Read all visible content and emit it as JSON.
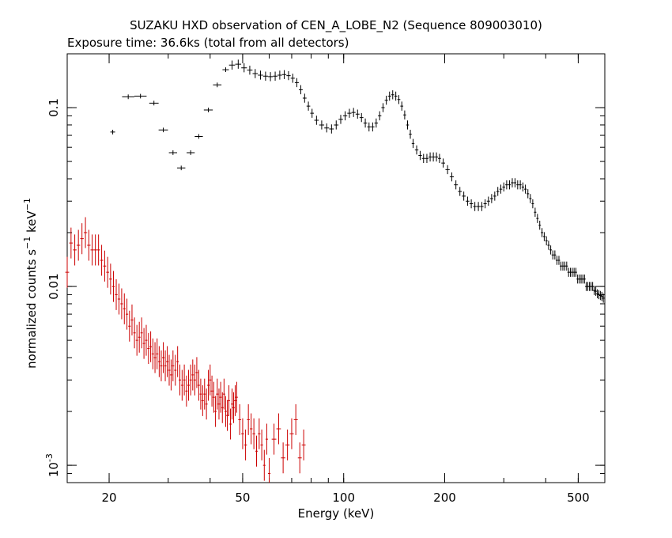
{
  "chart_data": {
    "type": "scatter",
    "title": "SUZAKU HXD observation of CEN_A_LOBE_N2 (Sequence 809003010)",
    "subtitle": "Exposure time: 36.6ks (total from all detectors)",
    "xlabel": "Energy (keV)",
    "ylabel": "normalized counts s^-1 keV^-1",
    "x_scale": "log",
    "y_scale": "log",
    "xlim": [
      15,
      600
    ],
    "ylim": [
      0.0008,
      0.2
    ],
    "x_ticks": [
      {
        "value": 20,
        "label": "20"
      },
      {
        "value": 50,
        "label": "50"
      },
      {
        "value": 100,
        "label": "100"
      },
      {
        "value": 200,
        "label": "200"
      },
      {
        "value": 500,
        "label": "500"
      }
    ],
    "y_ticks": [
      {
        "value": 0.1,
        "label": "0.1"
      },
      {
        "value": 0.01,
        "label": "0.01"
      },
      {
        "value": 0.001,
        "label_base": "10",
        "label_exp": "-3"
      }
    ],
    "grid": false,
    "legend": "none",
    "series": [
      {
        "color": "#000000",
        "points": [
          [
            20.5,
            0.073
          ],
          [
            22.8,
            0.115
          ],
          [
            24.8,
            0.116
          ],
          [
            27.2,
            0.106
          ],
          [
            29.0,
            0.075
          ],
          [
            31.0,
            0.056
          ],
          [
            32.8,
            0.046
          ],
          [
            35.0,
            0.056
          ],
          [
            37.0,
            0.069
          ],
          [
            39.5,
            0.097
          ],
          [
            42.0,
            0.134
          ],
          [
            44.5,
            0.163
          ],
          [
            46.5,
            0.173
          ],
          [
            48.5,
            0.175
          ],
          [
            50.5,
            0.167
          ],
          [
            52.5,
            0.162
          ],
          [
            54.5,
            0.155
          ],
          [
            56.5,
            0.152
          ],
          [
            58.5,
            0.15
          ],
          [
            60.5,
            0.149
          ],
          [
            62.5,
            0.15
          ],
          [
            64.5,
            0.152
          ],
          [
            66.5,
            0.153
          ],
          [
            68.5,
            0.151
          ],
          [
            70.5,
            0.146
          ],
          [
            72.5,
            0.138
          ],
          [
            74.5,
            0.126
          ],
          [
            76.5,
            0.113
          ],
          [
            78.5,
            0.102
          ],
          [
            80.5,
            0.093
          ],
          [
            83.0,
            0.085
          ],
          [
            86.0,
            0.08
          ],
          [
            89.0,
            0.077
          ],
          [
            92.0,
            0.076
          ],
          [
            95.0,
            0.08
          ],
          [
            98.0,
            0.086
          ],
          [
            101.0,
            0.09
          ],
          [
            104.0,
            0.093
          ],
          [
            107.0,
            0.094
          ],
          [
            110.0,
            0.092
          ],
          [
            113.0,
            0.088
          ],
          [
            116.0,
            0.082
          ],
          [
            119.0,
            0.078
          ],
          [
            122.0,
            0.078
          ],
          [
            125.0,
            0.082
          ],
          [
            128.0,
            0.09
          ],
          [
            131.0,
            0.1
          ],
          [
            134.0,
            0.11
          ],
          [
            137.0,
            0.116
          ],
          [
            140.0,
            0.118
          ],
          [
            143.0,
            0.116
          ],
          [
            146.0,
            0.111
          ],
          [
            149.0,
            0.102
          ],
          [
            152.0,
            0.091
          ],
          [
            155.0,
            0.08
          ],
          [
            158.0,
            0.071
          ],
          [
            161.0,
            0.063
          ],
          [
            165.0,
            0.058
          ],
          [
            169.0,
            0.054
          ],
          [
            173.0,
            0.052
          ],
          [
            177.0,
            0.052
          ],
          [
            181.0,
            0.053
          ],
          [
            185.0,
            0.053
          ],
          [
            189.0,
            0.053
          ],
          [
            193.0,
            0.052
          ],
          [
            198.0,
            0.049
          ],
          [
            204.0,
            0.045
          ],
          [
            210.0,
            0.041
          ],
          [
            216.0,
            0.037
          ],
          [
            222.0,
            0.034
          ],
          [
            228.0,
            0.032
          ],
          [
            234.0,
            0.03
          ],
          [
            240.0,
            0.029
          ],
          [
            246.0,
            0.028
          ],
          [
            252.0,
            0.028
          ],
          [
            258.0,
            0.028
          ],
          [
            264.0,
            0.029
          ],
          [
            270.0,
            0.03
          ],
          [
            276.0,
            0.031
          ],
          [
            282.0,
            0.032
          ],
          [
            288.0,
            0.034
          ],
          [
            294.0,
            0.035
          ],
          [
            300.0,
            0.036
          ],
          [
            306.0,
            0.037
          ],
          [
            312.0,
            0.037
          ],
          [
            318.0,
            0.038
          ],
          [
            324.0,
            0.038
          ],
          [
            330.0,
            0.037
          ],
          [
            336.0,
            0.037
          ],
          [
            342.0,
            0.036
          ],
          [
            348.0,
            0.035
          ],
          [
            354.0,
            0.033
          ],
          [
            360.0,
            0.031
          ],
          [
            366.0,
            0.029
          ],
          [
            372.0,
            0.026
          ],
          [
            378.0,
            0.024
          ],
          [
            384.0,
            0.022
          ],
          [
            390.0,
            0.02
          ],
          [
            396.0,
            0.019
          ],
          [
            402.0,
            0.018
          ],
          [
            408.0,
            0.017
          ],
          [
            414.0,
            0.016
          ],
          [
            420.0,
            0.015
          ],
          [
            426.0,
            0.015
          ],
          [
            432.0,
            0.014
          ],
          [
            438.0,
            0.014
          ],
          [
            444.0,
            0.013
          ],
          [
            450.0,
            0.013
          ],
          [
            456.0,
            0.013
          ],
          [
            462.0,
            0.013
          ],
          [
            468.0,
            0.012
          ],
          [
            474.0,
            0.012
          ],
          [
            480.0,
            0.012
          ],
          [
            486.0,
            0.012
          ],
          [
            492.0,
            0.012
          ],
          [
            498.0,
            0.011
          ],
          [
            504.0,
            0.011
          ],
          [
            510.0,
            0.011
          ],
          [
            516.0,
            0.011
          ],
          [
            522.0,
            0.011
          ],
          [
            528.0,
            0.01
          ],
          [
            534.0,
            0.01
          ],
          [
            540.0,
            0.01
          ],
          [
            546.0,
            0.01
          ],
          [
            552.0,
            0.01
          ],
          [
            558.0,
            0.0095
          ],
          [
            564.0,
            0.0094
          ],
          [
            570.0,
            0.0091
          ],
          [
            576.0,
            0.009
          ],
          [
            582.0,
            0.0089
          ],
          [
            588.0,
            0.0088
          ],
          [
            594.0,
            0.0086
          ]
        ]
      },
      {
        "color": "#cc0000",
        "points": [
          [
            15.0,
            0.012
          ],
          [
            15.4,
            0.0175
          ],
          [
            15.8,
            0.016
          ],
          [
            16.2,
            0.017
          ],
          [
            16.6,
            0.0185
          ],
          [
            17.0,
            0.02
          ],
          [
            17.4,
            0.017
          ],
          [
            17.8,
            0.016
          ],
          [
            18.2,
            0.016
          ],
          [
            18.6,
            0.016
          ],
          [
            19.0,
            0.014
          ],
          [
            19.4,
            0.013
          ],
          [
            19.8,
            0.012
          ],
          [
            20.2,
            0.011
          ],
          [
            20.6,
            0.01
          ],
          [
            21.0,
            0.009
          ],
          [
            21.4,
            0.0085
          ],
          [
            21.8,
            0.008
          ],
          [
            22.2,
            0.0075
          ],
          [
            22.6,
            0.007
          ],
          [
            23.0,
            0.006
          ],
          [
            23.4,
            0.0065
          ],
          [
            23.8,
            0.0055
          ],
          [
            24.2,
            0.005
          ],
          [
            24.6,
            0.0052
          ],
          [
            25.0,
            0.0055
          ],
          [
            25.4,
            0.0048
          ],
          [
            25.8,
            0.005
          ],
          [
            26.2,
            0.0045
          ],
          [
            26.6,
            0.0046
          ],
          [
            27.0,
            0.0042
          ],
          [
            27.4,
            0.004
          ],
          [
            27.8,
            0.0042
          ],
          [
            28.2,
            0.0038
          ],
          [
            28.6,
            0.0036
          ],
          [
            29.0,
            0.004
          ],
          [
            29.4,
            0.0036
          ],
          [
            29.8,
            0.0038
          ],
          [
            30.2,
            0.0034
          ],
          [
            30.6,
            0.0032
          ],
          [
            31.0,
            0.0036
          ],
          [
            31.5,
            0.0034
          ],
          [
            32.0,
            0.0038
          ],
          [
            32.5,
            0.003
          ],
          [
            33.0,
            0.0028
          ],
          [
            33.5,
            0.003
          ],
          [
            34.0,
            0.0026
          ],
          [
            34.5,
            0.0028
          ],
          [
            35.0,
            0.003
          ],
          [
            35.5,
            0.0032
          ],
          [
            36.0,
            0.003
          ],
          [
            36.5,
            0.0033
          ],
          [
            37.0,
            0.0028
          ],
          [
            37.5,
            0.0025
          ],
          [
            38.0,
            0.0023
          ],
          [
            38.5,
            0.0025
          ],
          [
            39.0,
            0.0022
          ],
          [
            39.5,
            0.0028
          ],
          [
            40.0,
            0.003
          ],
          [
            40.5,
            0.0026
          ],
          [
            41.0,
            0.0024
          ],
          [
            41.5,
            0.002
          ],
          [
            42.0,
            0.0025
          ],
          [
            42.5,
            0.0022
          ],
          [
            43.0,
            0.0024
          ],
          [
            43.5,
            0.0021
          ],
          [
            44.0,
            0.0025
          ],
          [
            44.5,
            0.002
          ],
          [
            45.0,
            0.0019
          ],
          [
            45.5,
            0.0023
          ],
          [
            46.0,
            0.0017
          ],
          [
            46.5,
            0.0022
          ],
          [
            47.0,
            0.0021
          ],
          [
            47.5,
            0.0023
          ],
          [
            48.0,
            0.0024
          ],
          [
            49.0,
            0.0018
          ],
          [
            50.0,
            0.0015
          ],
          [
            51.0,
            0.0013
          ],
          [
            52.0,
            0.0018
          ],
          [
            53.0,
            0.0016
          ],
          [
            54.0,
            0.0015
          ],
          [
            55.0,
            0.0012
          ],
          [
            56.0,
            0.0015
          ],
          [
            57.0,
            0.0013
          ],
          [
            58.0,
            0.001
          ],
          [
            59.0,
            0.0014
          ],
          [
            60.0,
            0.0009
          ],
          [
            62.0,
            0.0014
          ],
          [
            64.0,
            0.0016
          ],
          [
            66.0,
            0.0011
          ],
          [
            68.0,
            0.0013
          ],
          [
            70.0,
            0.0015
          ],
          [
            72.0,
            0.0018
          ],
          [
            74.0,
            0.0011
          ],
          [
            76.0,
            0.0013
          ]
        ]
      }
    ]
  }
}
